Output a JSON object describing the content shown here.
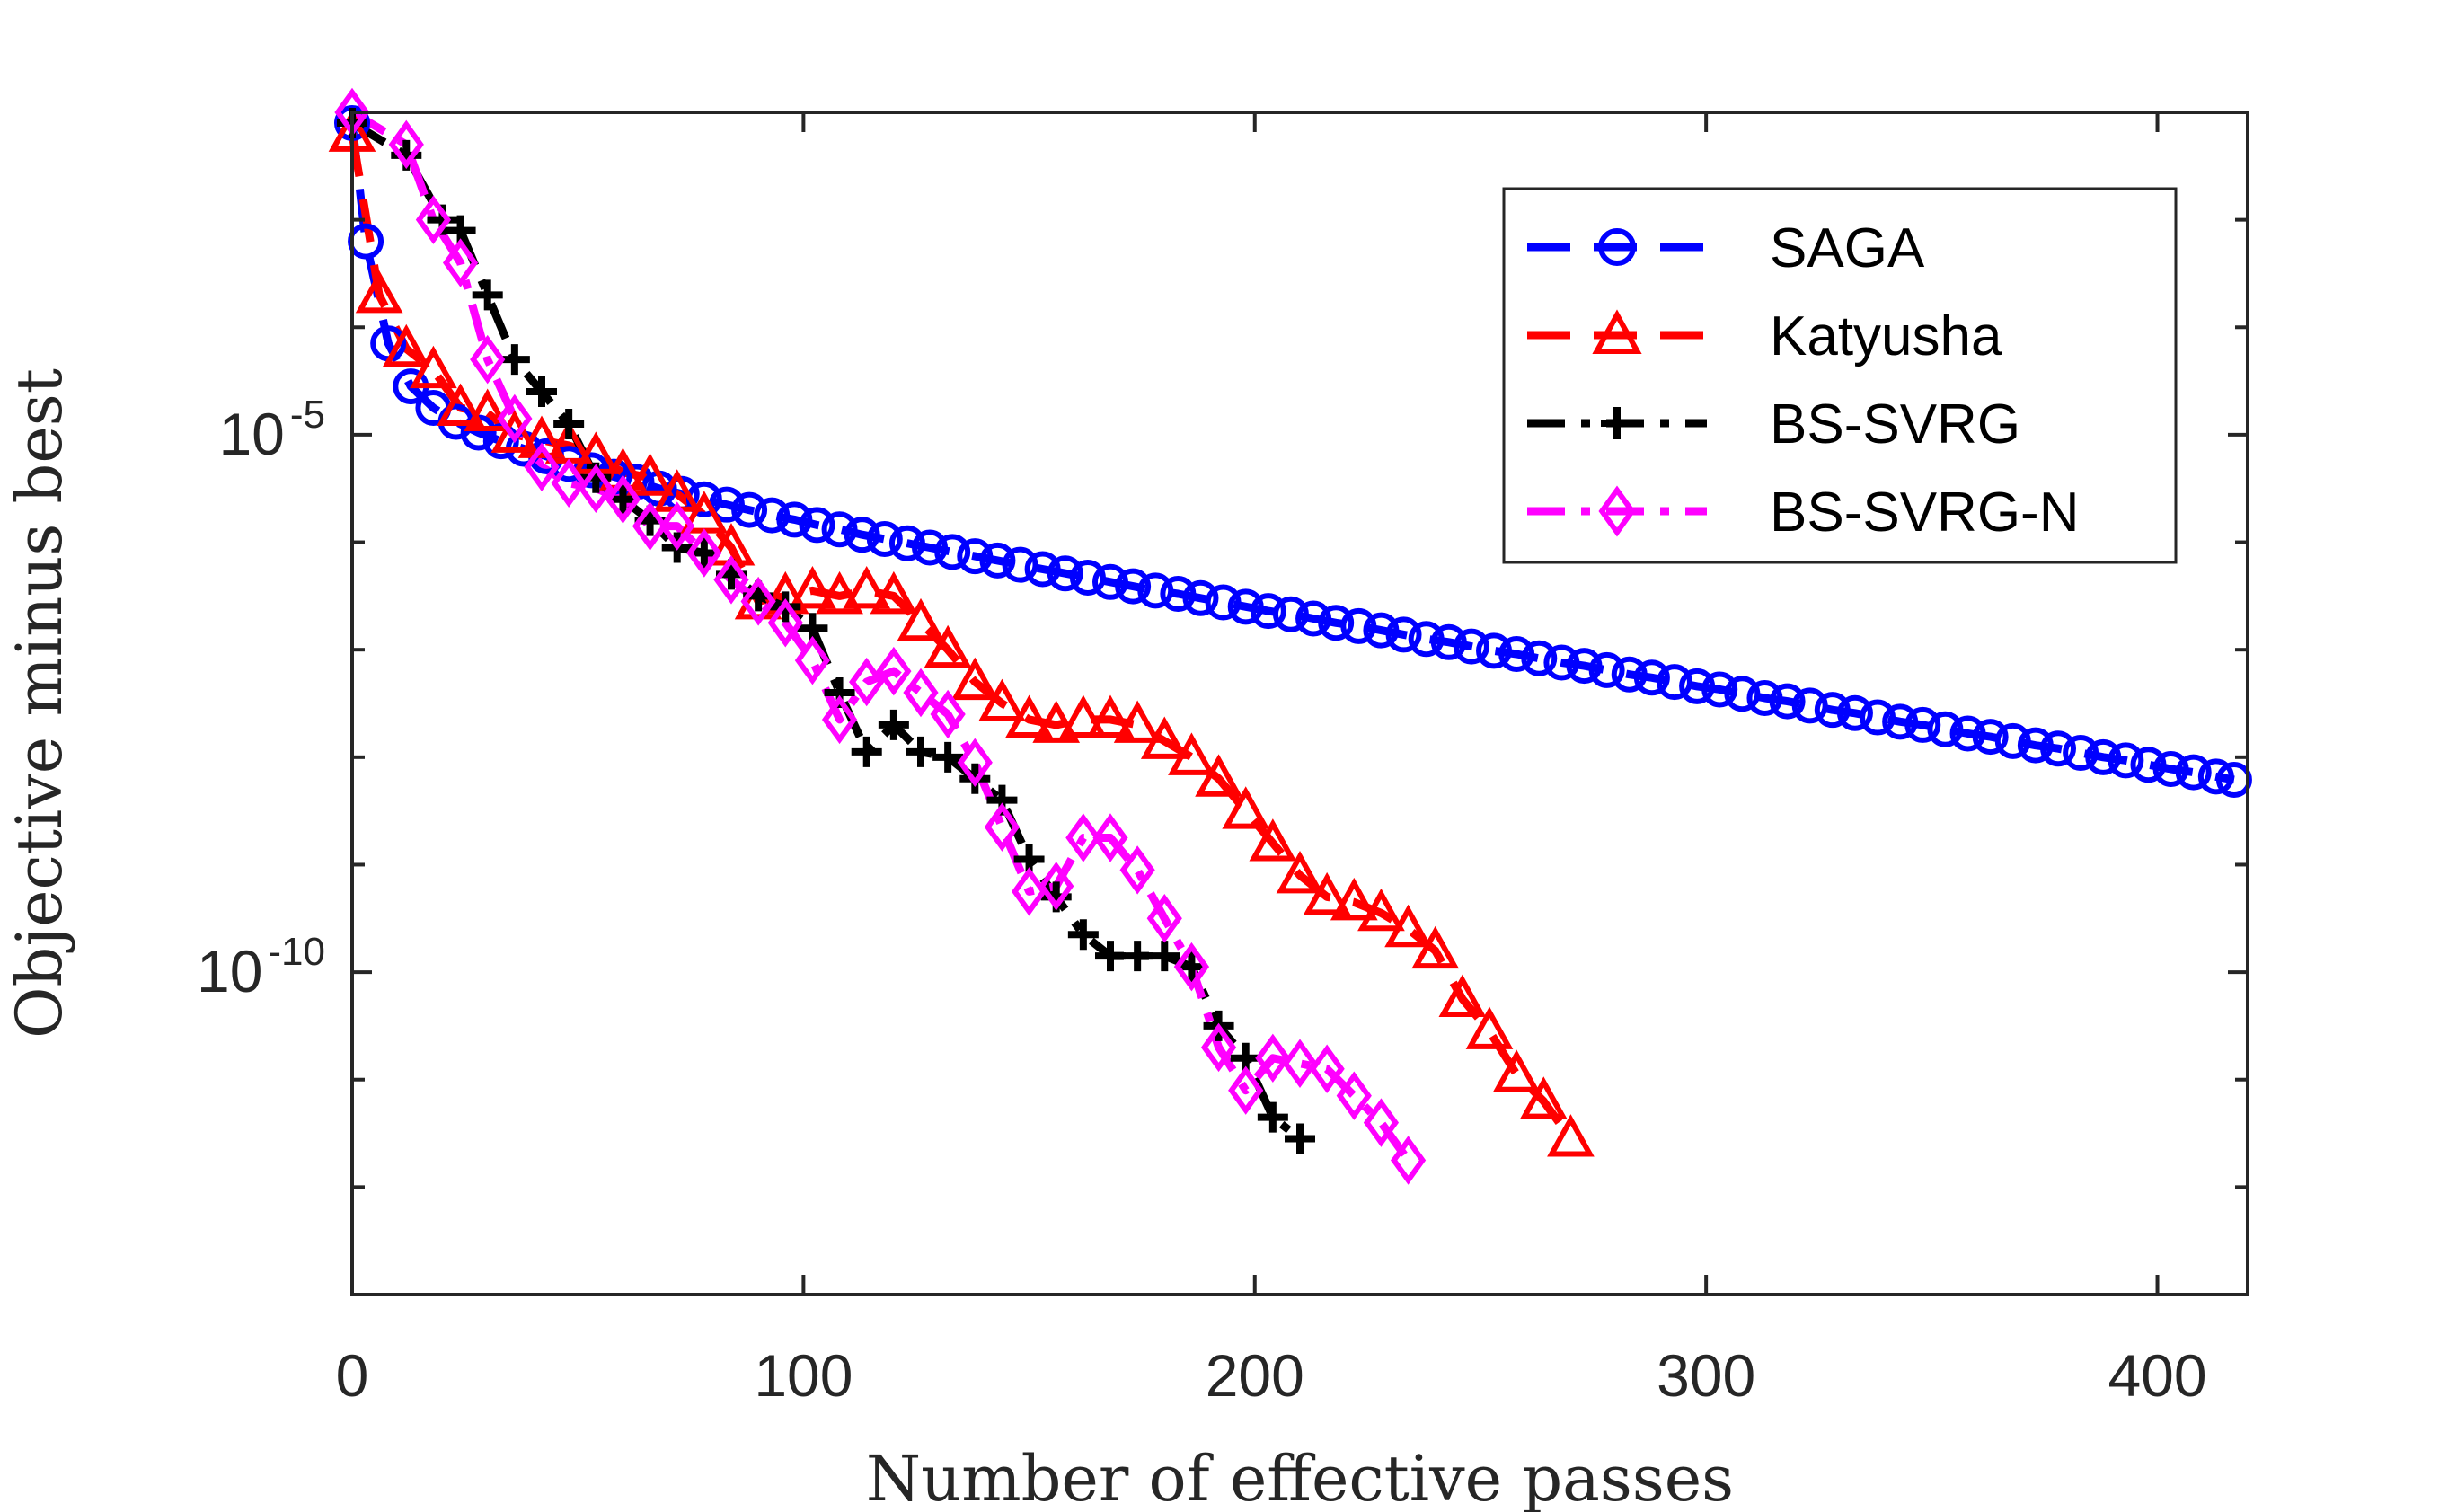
{
  "chart_data": {
    "type": "line",
    "title": "",
    "xlabel": "Number of effective passes",
    "ylabel": "Objective minus best",
    "xlim": [
      0,
      420
    ],
    "ylim_log10": [
      -13.0,
      -2.0
    ],
    "y_scale": "log",
    "x_ticks": [
      0,
      100,
      200,
      300,
      400
    ],
    "x_tick_labels": [
      "0",
      "100",
      "200",
      "300",
      "400"
    ],
    "y_ticks_log10": [
      -5,
      -10
    ],
    "y_tick_labels": [
      {
        "base": "10",
        "exponent": "-5"
      },
      {
        "base": "10",
        "exponent": "-10"
      }
    ],
    "legend_position": "top-right",
    "series": [
      {
        "name": "SAGA",
        "color": "#0000FF",
        "line_style": "dashed",
        "marker": "circle",
        "x": [
          0,
          3,
          8,
          13,
          18,
          23,
          28,
          33,
          38,
          43,
          48,
          53,
          58,
          63,
          68,
          73,
          78,
          83,
          88,
          93,
          98,
          103,
          108,
          113,
          118,
          123,
          128,
          133,
          138,
          143,
          148,
          153,
          158,
          163,
          168,
          173,
          178,
          183,
          188,
          193,
          198,
          203,
          208,
          213,
          218,
          223,
          228,
          233,
          238,
          243,
          248,
          253,
          258,
          263,
          268,
          273,
          278,
          283,
          288,
          293,
          298,
          303,
          308,
          313,
          318,
          323,
          328,
          333,
          338,
          343,
          348,
          353,
          358,
          363,
          368,
          373,
          378,
          383,
          388,
          393,
          398,
          403,
          408,
          413,
          417
        ],
        "log10_y": [
          -2.1,
          -3.2,
          -4.15,
          -4.55,
          -4.75,
          -4.88,
          -4.98,
          -5.06,
          -5.13,
          -5.2,
          -5.27,
          -5.33,
          -5.39,
          -5.44,
          -5.5,
          -5.55,
          -5.6,
          -5.65,
          -5.7,
          -5.75,
          -5.79,
          -5.84,
          -5.88,
          -5.93,
          -5.97,
          -6.01,
          -6.05,
          -6.09,
          -6.13,
          -6.17,
          -6.21,
          -6.25,
          -6.29,
          -6.33,
          -6.37,
          -6.41,
          -6.45,
          -6.48,
          -6.52,
          -6.56,
          -6.6,
          -6.64,
          -6.67,
          -6.71,
          -6.75,
          -6.78,
          -6.82,
          -6.86,
          -6.9,
          -6.93,
          -6.97,
          -7.01,
          -7.04,
          -7.08,
          -7.12,
          -7.15,
          -7.19,
          -7.23,
          -7.26,
          -7.3,
          -7.34,
          -7.37,
          -7.41,
          -7.45,
          -7.48,
          -7.52,
          -7.56,
          -7.59,
          -7.63,
          -7.67,
          -7.7,
          -7.74,
          -7.78,
          -7.81,
          -7.85,
          -7.89,
          -7.92,
          -7.96,
          -8.0,
          -8.03,
          -8.07,
          -8.11,
          -8.14,
          -8.18,
          -8.21
        ]
      },
      {
        "name": "Katyusha",
        "color": "#FF0000",
        "line_style": "dashed",
        "marker": "triangle",
        "x": [
          0,
          6,
          12,
          18,
          24,
          30,
          36,
          42,
          48,
          54,
          60,
          66,
          72,
          78,
          84,
          90,
          96,
          102,
          108,
          114,
          120,
          126,
          132,
          138,
          144,
          150,
          156,
          162,
          168,
          174,
          180,
          186,
          192,
          198,
          204,
          210,
          216,
          222,
          228,
          234,
          240,
          246,
          252,
          258,
          264,
          270
        ],
        "log10_y": [
          -2.2,
          -3.7,
          -4.2,
          -4.4,
          -4.75,
          -4.8,
          -5.0,
          -5.05,
          -5.1,
          -5.2,
          -5.35,
          -5.4,
          -5.55,
          -5.75,
          -6.05,
          -6.55,
          -6.5,
          -6.45,
          -6.5,
          -6.45,
          -6.5,
          -6.75,
          -7.0,
          -7.3,
          -7.5,
          -7.65,
          -7.7,
          -7.65,
          -7.65,
          -7.7,
          -7.85,
          -8.0,
          -8.2,
          -8.5,
          -8.8,
          -9.1,
          -9.3,
          -9.35,
          -9.45,
          -9.6,
          -9.8,
          -10.25,
          -10.55,
          -10.95,
          -11.2,
          -11.55
        ]
      },
      {
        "name": "BS-SVRG",
        "color": "#000000",
        "line_style": "dashdot",
        "marker": "plus",
        "x": [
          0,
          12,
          20,
          24,
          30,
          36,
          42,
          48,
          54,
          60,
          66,
          72,
          78,
          84,
          90,
          96,
          102,
          108,
          114,
          120,
          126,
          132,
          138,
          144,
          150,
          156,
          162,
          168,
          174,
          180,
          186,
          192,
          198,
          204,
          210
        ],
        "log10_y": [
          -2.1,
          -2.4,
          -3.0,
          -3.1,
          -3.7,
          -4.3,
          -4.6,
          -4.9,
          -5.4,
          -5.6,
          -5.8,
          -6.05,
          -6.1,
          -6.3,
          -6.5,
          -6.6,
          -6.8,
          -7.4,
          -7.95,
          -7.7,
          -7.95,
          -8.0,
          -8.2,
          -8.4,
          -8.95,
          -9.3,
          -9.65,
          -9.85,
          -9.85,
          -9.85,
          -9.95,
          -10.5,
          -10.8,
          -11.35,
          -11.55
        ]
      },
      {
        "name": "BS-SVRG-N",
        "color": "#FF00FF",
        "line_style": "dashdot",
        "marker": "diamond",
        "x": [
          0,
          12,
          18,
          24,
          30,
          36,
          42,
          48,
          54,
          60,
          66,
          72,
          78,
          84,
          90,
          96,
          102,
          108,
          114,
          120,
          126,
          132,
          138,
          144,
          150,
          156,
          162,
          168,
          174,
          180,
          186,
          192,
          198,
          204,
          210,
          216,
          222,
          228,
          234
        ],
        "log10_y": [
          -2.0,
          -2.3,
          -3.0,
          -3.4,
          -4.3,
          -4.85,
          -5.3,
          -5.45,
          -5.5,
          -5.6,
          -5.85,
          -5.85,
          -6.1,
          -6.35,
          -6.55,
          -6.75,
          -7.1,
          -7.65,
          -7.3,
          -7.2,
          -7.4,
          -7.6,
          -8.05,
          -8.65,
          -9.25,
          -9.2,
          -8.75,
          -8.75,
          -9.05,
          -9.5,
          -9.95,
          -10.7,
          -11.1,
          -10.8,
          -10.85,
          -10.9,
          -11.15,
          -11.4,
          -11.75
        ]
      }
    ]
  }
}
